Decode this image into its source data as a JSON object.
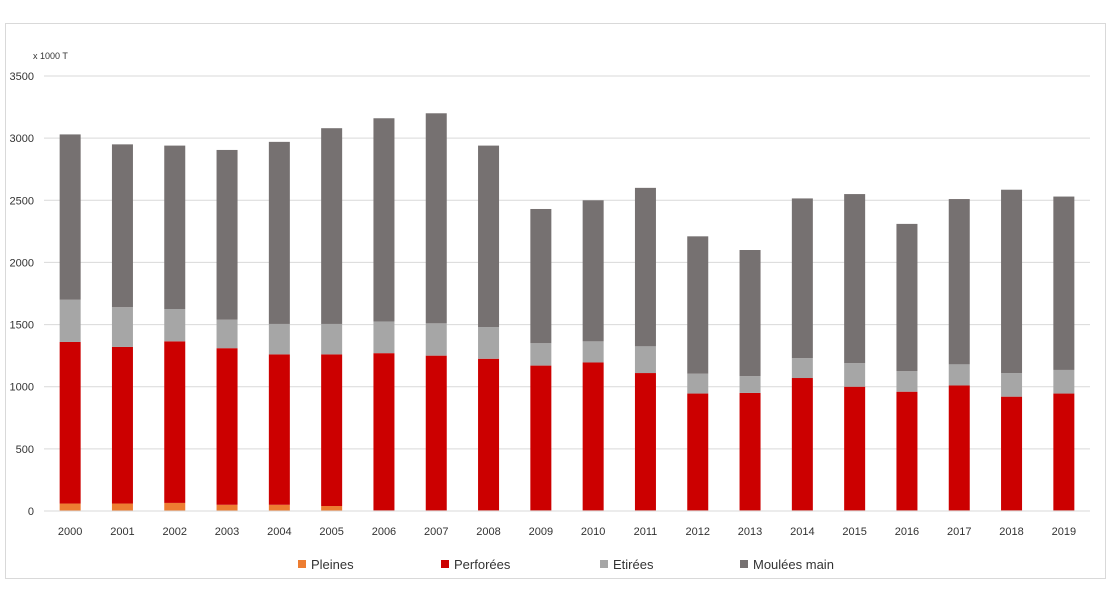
{
  "chart_data": {
    "type": "bar",
    "stacked": true,
    "unit_label": "x 1000 T",
    "categories": [
      "2000",
      "2001",
      "2002",
      "2003",
      "2004",
      "2005",
      "2006",
      "2007",
      "2008",
      "2009",
      "2010",
      "2011",
      "2012",
      "2013",
      "2014",
      "2015",
      "2016",
      "2017",
      "2018",
      "2019"
    ],
    "series": [
      {
        "name": "Pleines",
        "color": "#ed7d31",
        "values": [
          60,
          60,
          65,
          50,
          50,
          40,
          5,
          5,
          5,
          5,
          5,
          5,
          5,
          5,
          5,
          5,
          5,
          5,
          5,
          5
        ]
      },
      {
        "name": "Perforées",
        "color": "#cc0000",
        "values": [
          1300,
          1260,
          1300,
          1260,
          1210,
          1220,
          1265,
          1245,
          1220,
          1165,
          1190,
          1105,
          940,
          945,
          1065,
          995,
          955,
          1005,
          915,
          940
        ]
      },
      {
        "name": "Etirées",
        "color": "#a6a6a6",
        "values": [
          340,
          320,
          260,
          230,
          245,
          245,
          255,
          260,
          255,
          180,
          170,
          215,
          160,
          135,
          160,
          190,
          165,
          170,
          190,
          190
        ]
      },
      {
        "name": "Moulées main",
        "color": "#767171",
        "values": [
          1330,
          1310,
          1315,
          1365,
          1465,
          1575,
          1635,
          1690,
          1460,
          1080,
          1135,
          1275,
          1105,
          1015,
          1285,
          1360,
          1185,
          1330,
          1475,
          1395
        ]
      }
    ],
    "yticks": [
      "0",
      "500",
      "1000",
      "1500",
      "2000",
      "2500",
      "3000",
      "3500"
    ],
    "ylim": [
      0,
      3500
    ],
    "grid": true,
    "legend_position": "bottom"
  }
}
